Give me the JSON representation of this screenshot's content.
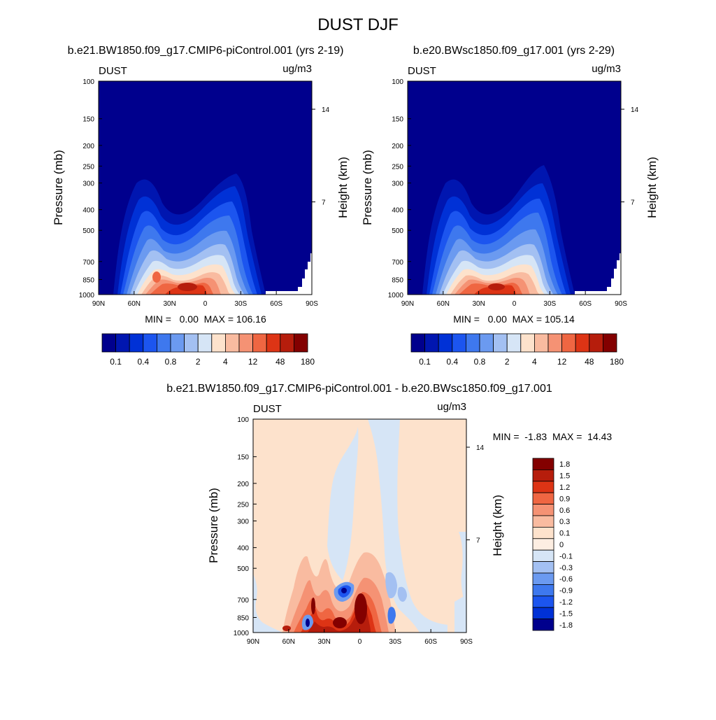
{
  "figure": {
    "title": "DUST DJF"
  },
  "chart_data": [
    {
      "type": "heatmap",
      "id": "top_left",
      "title": "b.e21.BW1850.f09_g17.CMIP6-piControl.001 (yrs 2-19)",
      "variable": "DUST",
      "units": "ug/m3",
      "ylabel": "Pressure (mb)",
      "ylabel_right": "Height (km)",
      "x_ticks": [
        "90N",
        "60N",
        "30N",
        "0",
        "30S",
        "60S",
        "90S"
      ],
      "y_ticks": [
        "100",
        "150",
        "200",
        "250",
        "300",
        "400",
        "500",
        "700",
        "850",
        "1000"
      ],
      "y_values": [
        100,
        150,
        200,
        250,
        300,
        400,
        500,
        700,
        850,
        1000
      ],
      "right_ticks": [
        "14",
        "7"
      ],
      "stats": "MIN =   0.00  MAX = 106.16",
      "min": 0.0,
      "max": 106.16,
      "colorbar": {
        "labels": [
          "0.1",
          "0.4",
          "0.8",
          "2",
          "4",
          "12",
          "48",
          "180"
        ],
        "colors": [
          "#00008d",
          "#0016b0",
          "#0031d6",
          "#1c55ef",
          "#3e78ee",
          "#6b9af0",
          "#a3c0f2",
          "#d6e5f6",
          "#fde2cc",
          "#f9bba0",
          "#f59274",
          "#ef6642",
          "#dd3415",
          "#b61d0c",
          "#830000"
        ]
      },
      "description_peaks": {
        "main_core_lat": -18,
        "secondary_core_lat": -40,
        "southern_plume_lat": 25
      }
    },
    {
      "type": "heatmap",
      "id": "top_right",
      "title": "b.e20.BWsc1850.f09_g17.001 (yrs 2-29)",
      "variable": "DUST",
      "units": "ug/m3",
      "ylabel": "Pressure (mb)",
      "ylabel_right": "Height (km)",
      "x_ticks": [
        "90N",
        "60N",
        "30N",
        "0",
        "30S",
        "60S",
        "90S"
      ],
      "y_ticks": [
        "100",
        "150",
        "200",
        "250",
        "300",
        "400",
        "500",
        "700",
        "850",
        "1000"
      ],
      "y_values": [
        100,
        150,
        200,
        250,
        300,
        400,
        500,
        700,
        850,
        1000
      ],
      "right_ticks": [
        "14",
        "7"
      ],
      "stats": "MIN =   0.00  MAX = 105.14",
      "min": 0.0,
      "max": 105.14,
      "colorbar": {
        "labels": [
          "0.1",
          "0.4",
          "0.8",
          "2",
          "4",
          "12",
          "48",
          "180"
        ],
        "colors": [
          "#00008d",
          "#0016b0",
          "#0031d6",
          "#1c55ef",
          "#3e78ee",
          "#6b9af0",
          "#a3c0f2",
          "#d6e5f6",
          "#fde2cc",
          "#f9bba0",
          "#f59274",
          "#ef6642",
          "#dd3415",
          "#b61d0c",
          "#830000"
        ]
      }
    },
    {
      "type": "heatmap",
      "id": "difference",
      "title": "b.e21.BW1850.f09_g17.CMIP6-piControl.001 - b.e20.BWsc1850.f09_g17.001",
      "variable": "DUST",
      "units": "ug/m3",
      "ylabel": "Pressure (mb)",
      "ylabel_right": "Height (km)",
      "x_ticks": [
        "90N",
        "60N",
        "30N",
        "0",
        "30S",
        "60S",
        "90S"
      ],
      "y_ticks": [
        "100",
        "150",
        "200",
        "250",
        "300",
        "400",
        "500",
        "700",
        "850",
        "1000"
      ],
      "y_values": [
        100,
        150,
        200,
        250,
        300,
        400,
        500,
        700,
        850,
        1000
      ],
      "right_ticks": [
        "14",
        "7"
      ],
      "stats": "MIN =  -1.83  MAX =  14.43",
      "min": -1.83,
      "max": 14.43,
      "colorbar": {
        "labels": [
          "1.8",
          "1.5",
          "1.2",
          "0.9",
          "0.6",
          "0.3",
          "0.1",
          "0",
          "-0.1",
          "-0.3",
          "-0.6",
          "-0.9",
          "-1.2",
          "-1.5",
          "-1.8"
        ],
        "colors": [
          "#830000",
          "#b61d0c",
          "#dd3415",
          "#ef6642",
          "#f59274",
          "#f9bba0",
          "#fde2cc",
          "#fdeee2",
          "#d6e5f6",
          "#a3c0f2",
          "#6b9af0",
          "#3e78ee",
          "#1c55ef",
          "#0031d6",
          "#00008d"
        ]
      }
    }
  ]
}
